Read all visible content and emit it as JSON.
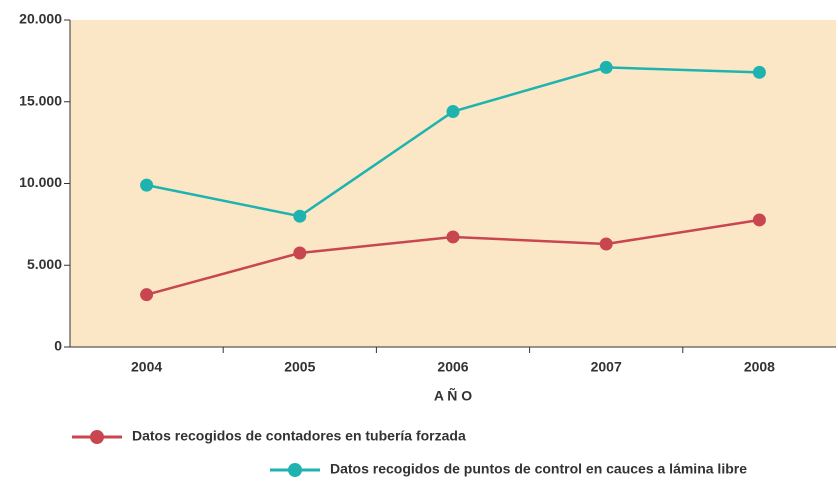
{
  "chart_data": {
    "type": "line",
    "x_label": "A Ñ O",
    "categories": [
      "2004",
      "2005",
      "2006",
      "2007",
      "2008"
    ],
    "series": [
      {
        "name": "Datos recogidos de contadores en tubería forzada",
        "color": "#c8464f",
        "values": [
          3200,
          5750,
          6730,
          6300,
          7770
        ]
      },
      {
        "name": "Datos recogidos de puntos de control en cauces a lámina libre",
        "color": "#1fb3b0",
        "values": [
          9900,
          8000,
          14400,
          17100,
          16800
        ]
      }
    ],
    "ylim": [
      0,
      20000
    ],
    "yticks": [
      0,
      {
        "value": 5000,
        "label": "5.000"
      },
      {
        "value": 10000,
        "label": "10.000"
      },
      {
        "value": 15000,
        "label": "15.000"
      },
      {
        "value": 20000,
        "label": "20.000"
      }
    ],
    "plot_background": "#fbe7c6"
  }
}
